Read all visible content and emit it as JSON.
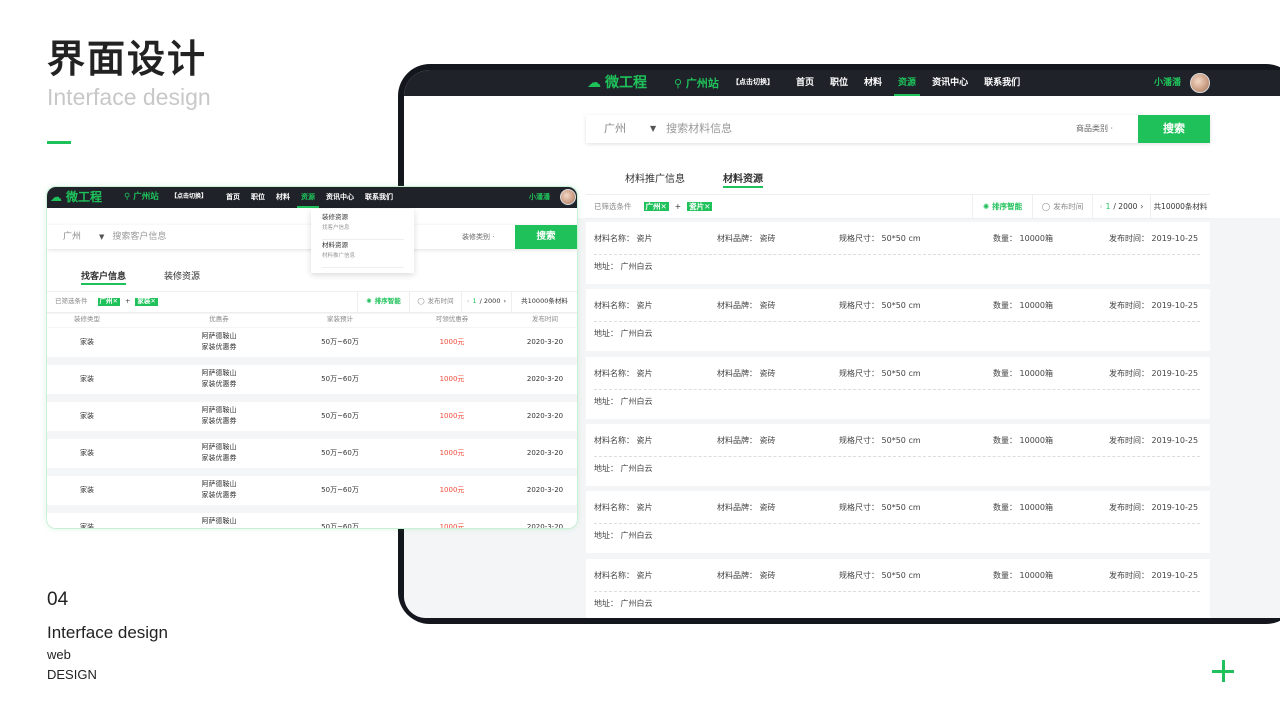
{
  "slide": {
    "title": "界面设计",
    "subtitle": "Interface design",
    "number": "04",
    "foot1": "Interface design",
    "foot2": "web",
    "foot3": "DESIGN",
    "accent": "#1fc15a"
  },
  "nav": {
    "logo": "微工程",
    "city": "广州站",
    "switch": "【点击切换】",
    "items": [
      "首页",
      "职位",
      "材料",
      "资源",
      "资讯中心",
      "联系我们"
    ],
    "active": 3,
    "user": "小潘潘"
  },
  "right": {
    "search": {
      "city": "广州",
      "placeholder": "搜索材料信息",
      "category": "商品类别",
      "button": "搜索"
    },
    "tabs": [
      "材料推广信息",
      "材料资源"
    ],
    "active_tab": 1,
    "filter": {
      "label": "已筛选条件",
      "chips": [
        "广州",
        "瓷片"
      ],
      "plus": "+",
      "sort": "排序智能",
      "time": "发布时间",
      "page_current": "1",
      "page_total": "/ 2000",
      "total": "共10000条材料"
    },
    "cards": [
      {
        "name": "材料名称：  瓷片",
        "brand": "材料品牌：  瓷砖",
        "size": "规格尺寸：  50*50  cm",
        "qty": "数量：  10000箱",
        "date": "发布时间：  2019-10-25",
        "addr": "地址：  广州白云"
      },
      {
        "name": "材料名称：  瓷片",
        "brand": "材料品牌：  瓷砖",
        "size": "规格尺寸：  50*50  cm",
        "qty": "数量：  10000箱",
        "date": "发布时间：  2019-10-25",
        "addr": "地址：  广州白云"
      },
      {
        "name": "材料名称：  瓷片",
        "brand": "材料品牌：  瓷砖",
        "size": "规格尺寸：  50*50  cm",
        "qty": "数量：  10000箱",
        "date": "发布时间：  2019-10-25",
        "addr": "地址：  广州白云"
      },
      {
        "name": "材料名称：  瓷片",
        "brand": "材料品牌：  瓷砖",
        "size": "规格尺寸：  50*50  cm",
        "qty": "数量：  10000箱",
        "date": "发布时间：  2019-10-25",
        "addr": "地址：  广州白云"
      },
      {
        "name": "材料名称：  瓷片",
        "brand": "材料品牌：  瓷砖",
        "size": "规格尺寸：  50*50  cm",
        "qty": "数量：  10000箱",
        "date": "发布时间：  2019-10-25",
        "addr": "地址：  广州白云"
      },
      {
        "name": "材料名称：  瓷片",
        "brand": "材料品牌：  瓷砖",
        "size": "规格尺寸：  50*50  cm",
        "qty": "数量：  10000箱",
        "date": "发布时间：  2019-10-25",
        "addr": "地址：  广州白云"
      }
    ]
  },
  "left": {
    "search": {
      "city": "广州",
      "placeholder": "搜索客户信息",
      "category": "装修类别",
      "button": "搜索"
    },
    "dropdown": [
      {
        "title": "装修资源",
        "sub": "找客户信息"
      },
      {
        "title": "材料资源",
        "sub": "材料推广信息"
      }
    ],
    "tabs": [
      "找客户信息",
      "装修资源"
    ],
    "active_tab": 0,
    "filter": {
      "label": "已筛选条件",
      "chips": [
        "广州",
        "家装"
      ],
      "plus": "+",
      "sort": "排序智能",
      "time": "发布时间",
      "page_current": "1",
      "page_total": "/ 2000",
      "total": "共10000条材料"
    },
    "columns": [
      "装修类型",
      "优惠券",
      "家装预计",
      "可领优惠券",
      "发布时间"
    ],
    "rows": [
      {
        "type": "家装",
        "coupon1": "阿萨德鞍山",
        "coupon2": "家装优惠券",
        "budget": "50万~60万",
        "amount": "1000元",
        "date": "2020-3-20"
      },
      {
        "type": "家装",
        "coupon1": "阿萨德鞍山",
        "coupon2": "家装优惠券",
        "budget": "50万~60万",
        "amount": "1000元",
        "date": "2020-3-20"
      },
      {
        "type": "家装",
        "coupon1": "阿萨德鞍山",
        "coupon2": "家装优惠券",
        "budget": "50万~60万",
        "amount": "1000元",
        "date": "2020-3-20"
      },
      {
        "type": "家装",
        "coupon1": "阿萨德鞍山",
        "coupon2": "家装优惠券",
        "budget": "50万~60万",
        "amount": "1000元",
        "date": "2020-3-20"
      },
      {
        "type": "家装",
        "coupon1": "阿萨德鞍山",
        "coupon2": "家装优惠券",
        "budget": "50万~60万",
        "amount": "1000元",
        "date": "2020-3-20"
      },
      {
        "type": "家装",
        "coupon1": "阿萨德鞍山",
        "coupon2": "家装优惠券",
        "budget": "50万~60万",
        "amount": "1000元",
        "date": "2020-3-20"
      }
    ],
    "amount_color": "#f04b3a"
  }
}
